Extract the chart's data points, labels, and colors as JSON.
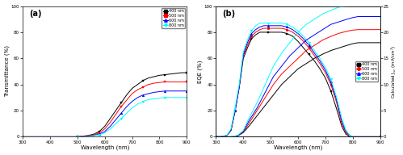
{
  "xlabel": "Wavelength (nm)",
  "xrange": [
    300,
    900
  ],
  "panel_a": {
    "label": "(a)",
    "ylabel": "Transmittance (%)",
    "ylim": [
      0,
      100
    ],
    "legend_labels": [
      "400 nm",
      "500 nm",
      "600 nm",
      "800 nm"
    ],
    "colors": [
      "black",
      "red",
      "blue",
      "cyan"
    ],
    "markers": [
      "s",
      "s",
      "^",
      "v"
    ],
    "series": {
      "400nm": {
        "x": [
          300,
          350,
          400,
          450,
          500,
          520,
          540,
          560,
          580,
          600,
          620,
          640,
          660,
          680,
          700,
          720,
          740,
          760,
          780,
          800,
          820,
          840,
          860,
          880,
          900
        ],
        "y": [
          0,
          0,
          0,
          0,
          0,
          0.5,
          1,
          2,
          4,
          8,
          14,
          20,
          26,
          32,
          37,
          40,
          43,
          45,
          46,
          47,
          47.5,
          48,
          48.5,
          49,
          49
        ]
      },
      "500nm": {
        "x": [
          300,
          350,
          400,
          450,
          500,
          520,
          540,
          560,
          580,
          600,
          620,
          640,
          660,
          680,
          700,
          720,
          740,
          760,
          780,
          800,
          820,
          840,
          860,
          880,
          900
        ],
        "y": [
          0,
          0,
          0,
          0,
          0,
          0.3,
          0.8,
          1.5,
          3,
          6,
          11,
          17,
          23,
          28,
          33,
          36,
          38,
          40,
          41,
          41.5,
          42,
          42,
          42,
          42,
          42
        ]
      },
      "600nm": {
        "x": [
          300,
          350,
          400,
          450,
          500,
          520,
          540,
          560,
          580,
          600,
          620,
          640,
          660,
          680,
          700,
          720,
          740,
          760,
          780,
          800,
          820,
          840,
          860,
          880,
          900
        ],
        "y": [
          0,
          0,
          0,
          0,
          0,
          0.2,
          0.5,
          1,
          2,
          4,
          8,
          13,
          18,
          23,
          27,
          30,
          32,
          33,
          34,
          34.5,
          35,
          35,
          35,
          35,
          35
        ]
      },
      "800nm": {
        "x": [
          300,
          350,
          400,
          450,
          500,
          520,
          540,
          560,
          580,
          600,
          620,
          640,
          660,
          680,
          700,
          720,
          740,
          760,
          780,
          800,
          820,
          840,
          860,
          880,
          900
        ],
        "y": [
          0,
          0,
          0,
          0,
          0,
          0.1,
          0.3,
          0.8,
          1.5,
          3,
          6,
          10,
          14,
          18,
          22,
          25,
          27,
          28.5,
          29,
          29.5,
          30,
          30,
          30,
          30,
          30
        ]
      }
    }
  },
  "panel_b": {
    "label": "(b)",
    "ylabel_left": "EQE (%)",
    "ylabel_right": "Calculated J$_{sc}$ (mA/cm$^2$)",
    "ylim_left": [
      0,
      100
    ],
    "ylim_right": [
      0,
      25
    ],
    "legend_labels": [
      "400 nm",
      "500 nm",
      "600 nm",
      "800 nm"
    ],
    "colors": [
      "black",
      "red",
      "blue",
      "cyan"
    ],
    "markers": [
      "s",
      "o",
      "^",
      "v"
    ],
    "eqe": {
      "400nm": {
        "x": [
          300,
          320,
          340,
          355,
          370,
          385,
          400,
          415,
          430,
          445,
          460,
          475,
          490,
          505,
          520,
          540,
          560,
          580,
          600,
          620,
          640,
          660,
          680,
          700,
          720,
          740,
          760,
          775,
          790,
          800,
          820,
          860,
          900
        ],
        "y": [
          0,
          0,
          1,
          5,
          20,
          38,
          60,
          68,
          75,
          78,
          80,
          80,
          80,
          80,
          80,
          80,
          79,
          77,
          73,
          68,
          63,
          58,
          52,
          45,
          35,
          22,
          8,
          2,
          0,
          0,
          0,
          0,
          0
        ]
      },
      "500nm": {
        "x": [
          300,
          320,
          340,
          355,
          370,
          385,
          400,
          415,
          430,
          445,
          460,
          475,
          490,
          505,
          520,
          540,
          560,
          580,
          600,
          620,
          640,
          660,
          680,
          700,
          720,
          740,
          760,
          775,
          790,
          800,
          820,
          860,
          900
        ],
        "y": [
          0,
          0,
          1,
          5,
          20,
          38,
          62,
          70,
          77,
          80,
          82,
          83,
          83,
          83,
          83,
          83,
          82,
          80,
          77,
          73,
          68,
          62,
          56,
          49,
          40,
          27,
          10,
          3,
          0,
          0,
          0,
          0,
          0
        ]
      },
      "600nm": {
        "x": [
          300,
          320,
          340,
          355,
          370,
          385,
          400,
          415,
          430,
          445,
          460,
          475,
          490,
          505,
          520,
          540,
          560,
          580,
          600,
          620,
          640,
          660,
          680,
          700,
          720,
          740,
          760,
          775,
          790,
          800,
          820,
          860,
          900
        ],
        "y": [
          0,
          0,
          1,
          5,
          20,
          38,
          63,
          72,
          79,
          82,
          84,
          85,
          85,
          85,
          85,
          85,
          84,
          82,
          79,
          75,
          70,
          64,
          58,
          51,
          42,
          29,
          12,
          4,
          1,
          0,
          0,
          0,
          0
        ]
      },
      "800nm": {
        "x": [
          300,
          320,
          340,
          355,
          370,
          385,
          400,
          415,
          430,
          445,
          460,
          475,
          490,
          505,
          520,
          540,
          560,
          580,
          600,
          620,
          640,
          660,
          680,
          700,
          720,
          740,
          760,
          775,
          790,
          800,
          820,
          860,
          900
        ],
        "y": [
          0,
          0,
          1,
          6,
          22,
          40,
          65,
          74,
          81,
          85,
          87,
          87,
          87,
          87,
          87,
          87,
          86,
          84,
          81,
          77,
          72,
          66,
          60,
          53,
          44,
          31,
          14,
          5,
          1,
          0,
          0,
          0,
          0
        ]
      }
    },
    "jsc": {
      "400nm": {
        "x": [
          300,
          360,
          380,
          400,
          420,
          450,
          480,
          510,
          540,
          570,
          600,
          630,
          660,
          690,
          720,
          750,
          780,
          800,
          820,
          860,
          900
        ],
        "y": [
          0,
          0,
          0.2,
          0.8,
          2,
          4,
          6,
          8,
          10,
          11.5,
          13,
          14,
          15,
          15.8,
          16.5,
          17,
          17.5,
          17.8,
          18,
          18,
          18
        ]
      },
      "500nm": {
        "x": [
          300,
          360,
          380,
          400,
          420,
          450,
          480,
          510,
          540,
          570,
          600,
          630,
          660,
          690,
          720,
          750,
          780,
          800,
          820,
          860,
          900
        ],
        "y": [
          0,
          0,
          0.2,
          0.9,
          2.5,
          5,
          7.5,
          10,
          12,
          13.5,
          15,
          16.5,
          17.5,
          18.5,
          19.2,
          19.8,
          20.2,
          20.4,
          20.5,
          20.5,
          20.5
        ]
      },
      "600nm": {
        "x": [
          300,
          360,
          380,
          400,
          420,
          450,
          480,
          510,
          540,
          570,
          600,
          630,
          660,
          690,
          720,
          750,
          780,
          800,
          820,
          860,
          900
        ],
        "y": [
          0,
          0,
          0.2,
          1,
          3,
          5.5,
          8.5,
          11.5,
          13.5,
          15.5,
          17,
          18.5,
          19.5,
          20.5,
          21.5,
          22,
          22.5,
          22.8,
          23,
          23,
          23
        ]
      },
      "800nm": {
        "x": [
          300,
          360,
          380,
          400,
          420,
          450,
          480,
          510,
          540,
          570,
          600,
          630,
          660,
          690,
          720,
          750,
          780,
          800,
          820,
          860,
          900
        ],
        "y": [
          0,
          0,
          0.3,
          1.2,
          3.5,
          6.5,
          10,
          13.5,
          16,
          18,
          20,
          21.5,
          22.5,
          23.5,
          24.2,
          24.8,
          25,
          25,
          25,
          25,
          25
        ]
      }
    }
  }
}
